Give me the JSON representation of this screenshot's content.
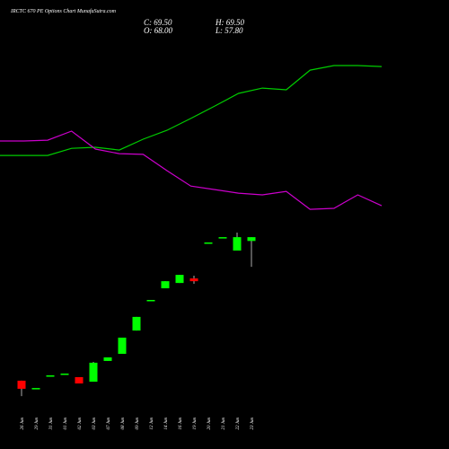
{
  "chart_data": {
    "type": "candlestick",
    "title": "IRCTC 670 PE Options Chart MunafaSutra.com",
    "ohlc_labels": {
      "close": "C: 69.50",
      "open": "O: 68.00",
      "high": "H: 69.50",
      "low": "L: 57.80"
    },
    "categories": [
      "26 Jun",
      "29 Jun",
      "31 Jun",
      "01 Jun",
      "02 Jun",
      "03 Jun",
      "07 Jun",
      "08 Jun",
      "09 Jun",
      "12 Jun",
      "14 Jun",
      "16 Jun",
      "19 Jun",
      "20 Jun",
      "21 Jun",
      "22 Jun",
      "23 Jun"
    ],
    "open": [
      12.8,
      9.9,
      14.9,
      15.6,
      14.2,
      12.4,
      20.6,
      23.4,
      32.6,
      44.7,
      49.3,
      51.4,
      53.2,
      67.4,
      69.5,
      64.2,
      68.0
    ],
    "high": [
      12.8,
      9.9,
      14.9,
      15.6,
      14.2,
      20.2,
      22.0,
      29.8,
      38.0,
      44.7,
      52.1,
      54.6,
      54.3,
      67.4,
      69.5,
      71.3,
      69.5
    ],
    "low": [
      6.7,
      9.9,
      14.9,
      15.6,
      11.7,
      12.4,
      20.6,
      23.4,
      32.6,
      44.7,
      49.3,
      51.4,
      51.1,
      67.4,
      69.5,
      64.2,
      57.8
    ],
    "close": [
      9.6,
      9.9,
      14.9,
      15.6,
      11.7,
      19.9,
      22.0,
      29.8,
      38.0,
      44.7,
      52.1,
      54.6,
      52.1,
      67.4,
      69.5,
      69.5,
      69.5
    ],
    "up_color": "#00ff00",
    "down_color": "#ff0000",
    "lines": [
      {
        "color": "#00cc00",
        "values": [
          101.8,
          101.8,
          101.8,
          104.6,
          105.0,
          103.9,
          108.2,
          111.7,
          116.4,
          121.3,
          126.3,
          128.4,
          127.7,
          135.5,
          137.3,
          137.3,
          136.9
        ]
      },
      {
        "color": "#cc00cc",
        "values": [
          107.5,
          107.5,
          107.8,
          111.4,
          104.3,
          102.5,
          102.2,
          95.8,
          89.7,
          88.3,
          86.9,
          86.2,
          87.6,
          80.5,
          80.9,
          86.2,
          81.9
        ]
      }
    ],
    "ylim": [
      0,
      160
    ]
  }
}
